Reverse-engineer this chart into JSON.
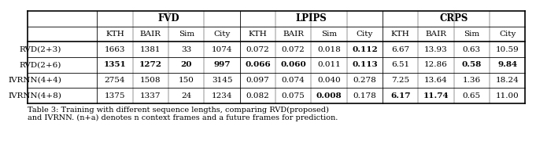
{
  "row_labels": [
    "RVD(2+3)",
    "RVD(2+6)",
    "IVRNN(4+4)",
    "IVRNN(4+8)"
  ],
  "cells": [
    [
      "1663",
      "1381",
      "33",
      "1074",
      "0.072",
      "0.072",
      "0.018",
      "0.112",
      "6.67",
      "13.93",
      "0.63",
      "10.59"
    ],
    [
      "1351",
      "1272",
      "20",
      "997",
      "0.066",
      "0.060",
      "0.011",
      "0.113",
      "6.51",
      "12.86",
      "0.58",
      "9.84"
    ],
    [
      "2754",
      "1508",
      "150",
      "3145",
      "0.097",
      "0.074",
      "0.040",
      "0.278",
      "7.25",
      "13.64",
      "1.36",
      "18.24"
    ],
    [
      "1375",
      "1337",
      "24",
      "1234",
      "0.082",
      "0.075",
      "0.008",
      "0.178",
      "6.17",
      "11.74",
      "0.65",
      "11.00"
    ]
  ],
  "bold_cells": [
    [
      false,
      false,
      false,
      false,
      false,
      false,
      false,
      true,
      false,
      false,
      false,
      false
    ],
    [
      true,
      true,
      true,
      true,
      true,
      true,
      false,
      true,
      false,
      false,
      true,
      true
    ],
    [
      false,
      false,
      false,
      false,
      false,
      false,
      false,
      false,
      false,
      false,
      false,
      false
    ],
    [
      false,
      false,
      false,
      false,
      false,
      false,
      true,
      false,
      true,
      true,
      false,
      false
    ]
  ],
  "sub_headers": [
    "KTH",
    "BAIR",
    "Sim",
    "City",
    "KTH",
    "BAIR",
    "Sim",
    "City",
    "KTH",
    "BAIR",
    "Sim",
    "City"
  ],
  "caption_line1": "Table 3: Training with different sequence lengths, comparing RVD(proposed)",
  "caption_line2": "and IVRNN. (n+a) denotes n context frames and a future frames for prediction.",
  "bg_color": "#ffffff",
  "text_color": "#000000",
  "header_fontsize": 8.5,
  "data_fontsize": 7.5,
  "caption_fontsize": 7.0
}
